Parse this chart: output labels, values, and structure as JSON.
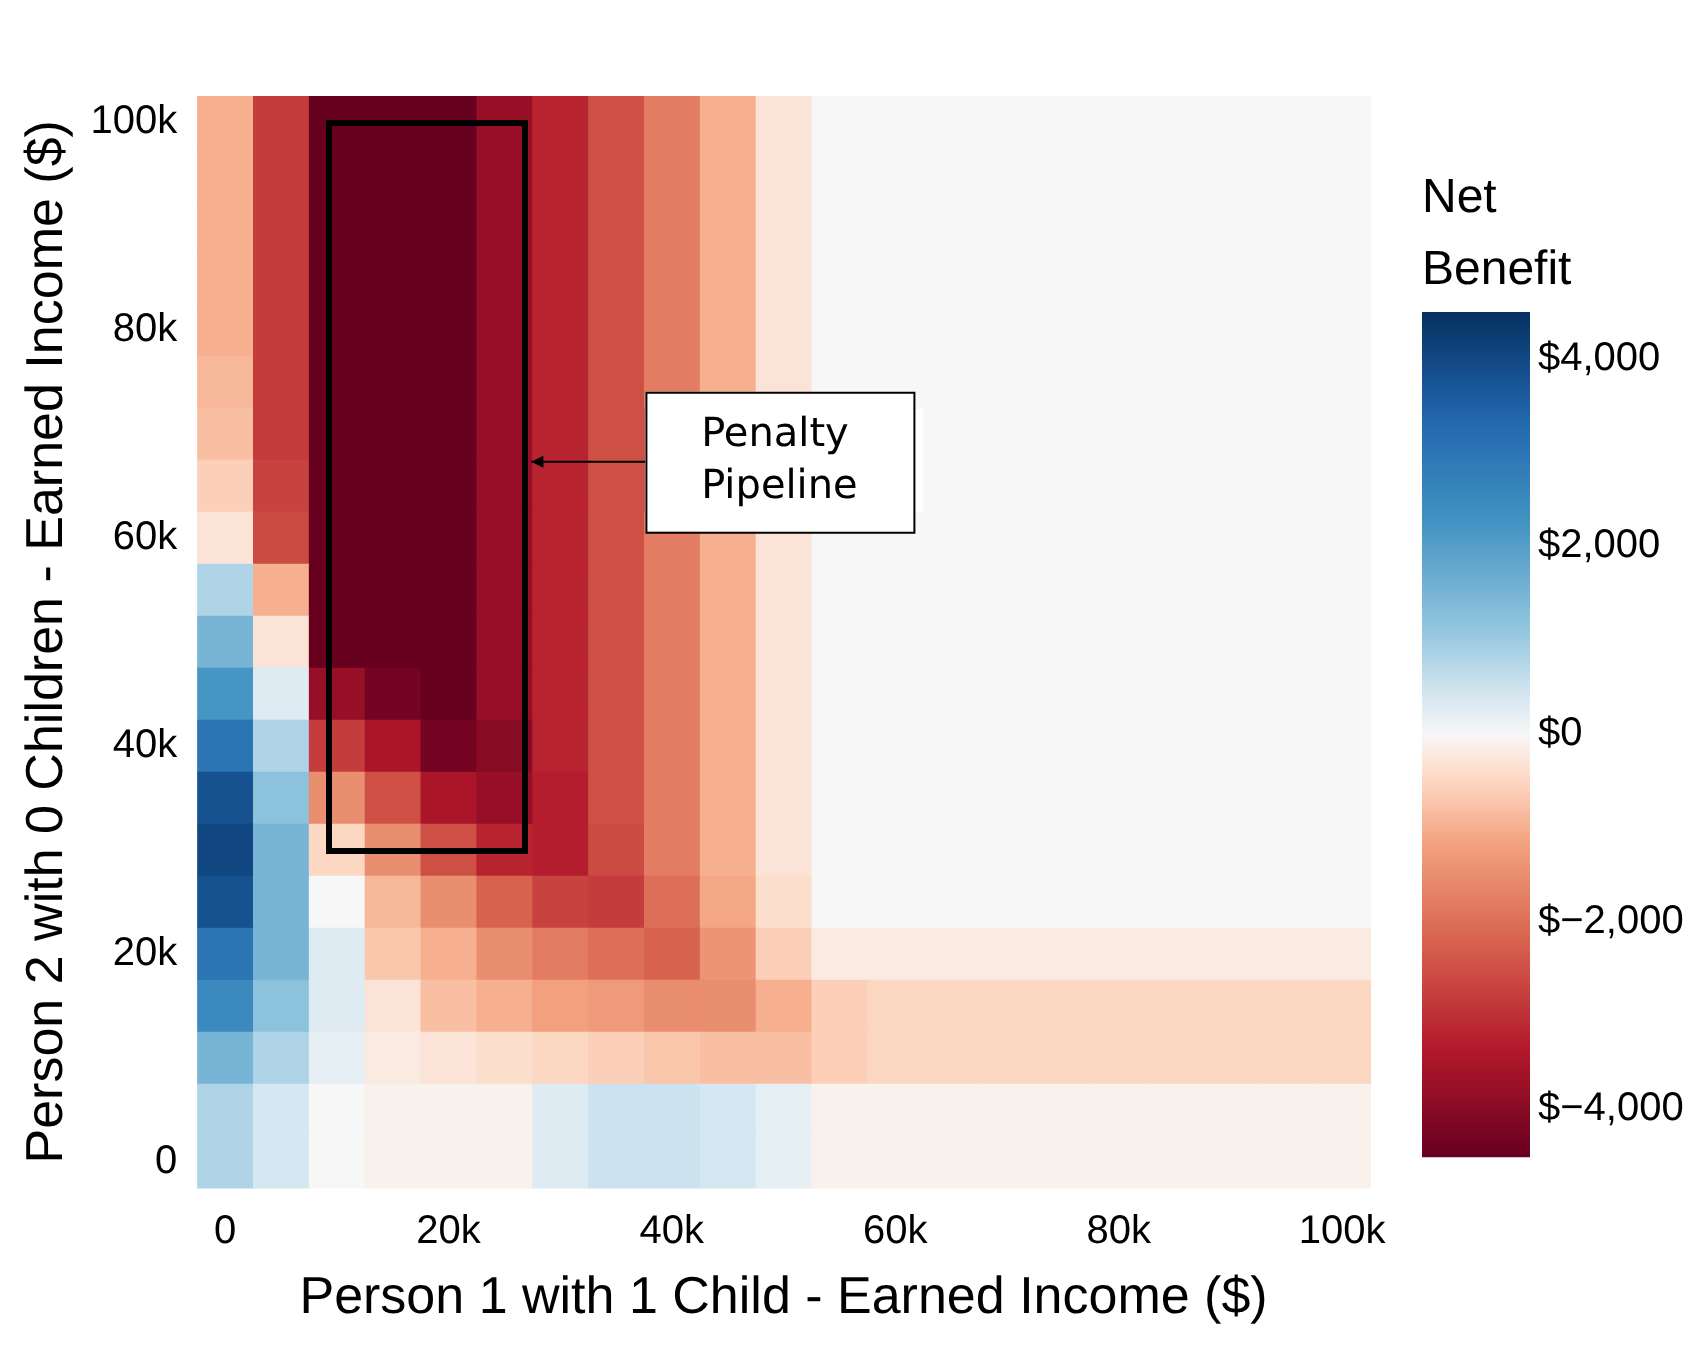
{
  "chart_data": {
    "type": "heatmap",
    "xlabel": "Person 1 with 1 Child - Earned Income ($)",
    "ylabel": "Person 2 with 0 Children - Earned Income ($)",
    "clabel": "Net Benefit",
    "categories": [
      "0",
      null,
      null,
      null,
      "20k",
      null,
      null,
      null,
      "40k",
      null,
      null,
      null,
      "60k",
      null,
      null,
      null,
      "80k",
      null,
      null,
      null,
      "100k"
    ],
    "y_categories": [
      "100k",
      null,
      null,
      null,
      "80k",
      null,
      null,
      null,
      "60k",
      null,
      null,
      null,
      "40k",
      null,
      null,
      null,
      "20k",
      null,
      null,
      null,
      "0"
    ],
    "clim": [
      -4500,
      4500
    ],
    "cticks": [
      {
        "value": -4000,
        "label": "$−4,000"
      },
      {
        "value": -2000,
        "label": "$−2,000"
      },
      {
        "value": 0,
        "label": "$0"
      },
      {
        "value": 2000,
        "label": "$2,000"
      },
      {
        "value": 4000,
        "label": "$4,000"
      }
    ],
    "cells": [
      [
        -1000,
        -2800,
        -4500,
        -4500,
        -4500,
        -3800,
        -3200,
        -2500,
        -1800,
        -1000,
        -300,
        0,
        0,
        0,
        0,
        0,
        0,
        0,
        0,
        0,
        0
      ],
      [
        -1000,
        -2800,
        -4500,
        -4500,
        -4500,
        -3800,
        -3200,
        -2500,
        -1800,
        -1000,
        -300,
        0,
        0,
        0,
        0,
        0,
        0,
        0,
        0,
        0,
        0
      ],
      [
        -1000,
        -2800,
        -4500,
        -4500,
        -4500,
        -3800,
        -3200,
        -2500,
        -1800,
        -1000,
        -300,
        0,
        0,
        0,
        0,
        0,
        0,
        0,
        0,
        0,
        0
      ],
      [
        -1000,
        -2800,
        -4500,
        -4500,
        -4500,
        -3800,
        -3200,
        -2500,
        -1800,
        -1000,
        -300,
        0,
        0,
        0,
        0,
        0,
        0,
        0,
        0,
        0,
        0
      ],
      [
        -1000,
        -2800,
        -4500,
        -4500,
        -4500,
        -3800,
        -3200,
        -2500,
        -1800,
        -1000,
        -300,
        0,
        0,
        0,
        0,
        0,
        0,
        0,
        0,
        0,
        0
      ],
      [
        -900,
        -2800,
        -4500,
        -4500,
        -4500,
        -3800,
        -3200,
        -2500,
        -1800,
        -1000,
        -300,
        0,
        0,
        0,
        0,
        0,
        0,
        0,
        0,
        0,
        0
      ],
      [
        -800,
        -2800,
        -4500,
        -4500,
        -4500,
        -3800,
        -3200,
        -2500,
        null,
        null,
        null,
        null,
        null,
        0,
        0,
        0,
        0,
        0,
        0,
        0,
        0
      ],
      [
        -600,
        -2700,
        -4500,
        -4500,
        -4500,
        -3800,
        -3200,
        -2500,
        null,
        null,
        null,
        null,
        null,
        0,
        0,
        0,
        0,
        0,
        0,
        0,
        0
      ],
      [
        -300,
        -2600,
        -4500,
        -4500,
        -4500,
        -3800,
        -3200,
        -2500,
        -1800,
        -1000,
        -300,
        0,
        0,
        0,
        0,
        0,
        0,
        0,
        0,
        0,
        0
      ],
      [
        800,
        -1000,
        -4500,
        -4500,
        -4500,
        -3800,
        -3200,
        -2500,
        -1800,
        -1000,
        -300,
        0,
        0,
        0,
        0,
        0,
        0,
        0,
        0,
        0,
        0
      ],
      [
        1500,
        -300,
        -4500,
        -4500,
        -4500,
        -3800,
        -3200,
        -2500,
        -1800,
        -1000,
        -300,
        0,
        0,
        0,
        0,
        0,
        0,
        0,
        0,
        0,
        0
      ],
      [
        2200,
        300,
        -3800,
        -4300,
        -4500,
        -3800,
        -3200,
        -2500,
        -1800,
        -1000,
        -300,
        0,
        0,
        0,
        0,
        0,
        0,
        0,
        0,
        0,
        0
      ],
      [
        3000,
        800,
        -2800,
        -3500,
        -4300,
        -4000,
        -3200,
        -2500,
        -1800,
        -1000,
        -300,
        0,
        0,
        0,
        0,
        0,
        0,
        0,
        0,
        0,
        0
      ],
      [
        3800,
        1200,
        -1500,
        -2500,
        -3500,
        -3800,
        -3300,
        -2500,
        -1800,
        -1000,
        -300,
        0,
        0,
        0,
        0,
        0,
        0,
        0,
        0,
        0,
        0
      ],
      [
        4000,
        1500,
        -500,
        -1500,
        -2500,
        -3200,
        -3300,
        -2600,
        -1800,
        -1000,
        -300,
        0,
        0,
        0,
        0,
        0,
        0,
        0,
        0,
        0,
        0
      ],
      [
        3800,
        1500,
        0,
        -900,
        -1500,
        -2200,
        -2700,
        -2800,
        -2000,
        -1100,
        -400,
        0,
        0,
        0,
        0,
        0,
        0,
        0,
        0,
        0,
        0
      ],
      [
        3000,
        1500,
        300,
        -700,
        -1000,
        -1500,
        -1800,
        -2000,
        -2200,
        -1400,
        -600,
        -200,
        -200,
        -200,
        -200,
        -200,
        -200,
        -200,
        -200,
        -200,
        -200
      ],
      [
        2500,
        1200,
        300,
        -300,
        -800,
        -1000,
        -1200,
        -1300,
        -1500,
        -1500,
        -1000,
        -600,
        -500,
        -500,
        -500,
        -500,
        -500,
        -500,
        -500,
        -500,
        -500
      ],
      [
        1500,
        800,
        200,
        -200,
        -300,
        -400,
        -500,
        -600,
        -700,
        -800,
        -800,
        -600,
        -500,
        -500,
        -500,
        -500,
        -500,
        -500,
        -500,
        -500,
        -500
      ],
      [
        800,
        400,
        0,
        -100,
        -100,
        -100,
        300,
        500,
        500,
        400,
        200,
        -100,
        -100,
        -100,
        -100,
        -100,
        -100,
        -100,
        -100,
        -100,
        -100
      ],
      [
        800,
        400,
        0,
        -100,
        -100,
        -100,
        300,
        500,
        500,
        400,
        200,
        -100,
        -100,
        -100,
        -100,
        -100,
        -100,
        -100,
        -100,
        -100,
        -100
      ]
    ],
    "annotations": [
      "Penalty Pipeline"
    ]
  }
}
